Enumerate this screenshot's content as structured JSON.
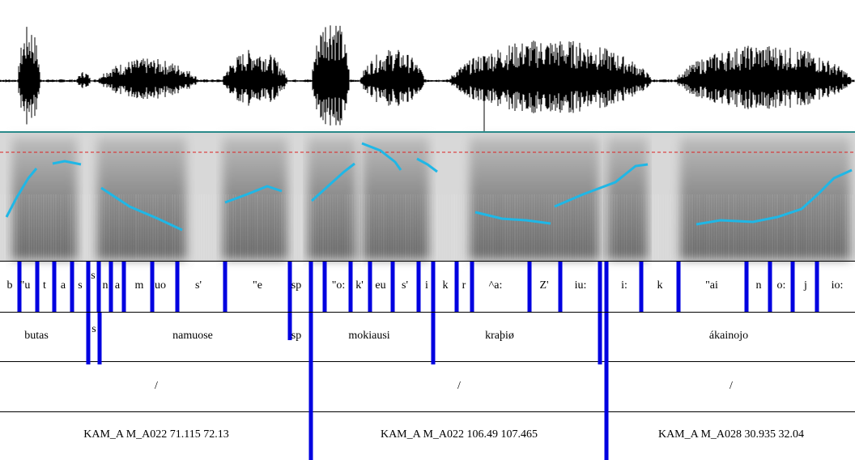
{
  "phones": [
    "b",
    "\"u",
    "t",
    "a",
    "s",
    "s",
    "n",
    "a",
    "m",
    "uo",
    "s'",
    "\"e",
    "sp",
    "\"o:",
    "k'",
    "eu",
    "s'",
    "i",
    "k",
    "r",
    "^a:",
    "Z'",
    "iu:",
    "i:",
    "k",
    "\"ai",
    "n",
    "o:",
    "j",
    "io:"
  ],
  "words": [
    "butas",
    "s",
    "namuose",
    "sp",
    "mokiausi",
    "kraþiø",
    "ákainojo"
  ],
  "phrases": [
    "/",
    "/",
    "/"
  ],
  "utterances": [
    "KAM_A M_A022 71.115 72.13",
    "KAM_A M_A022 106.49 107.465",
    "KAM_A M_A028 30.935 32.04"
  ]
}
